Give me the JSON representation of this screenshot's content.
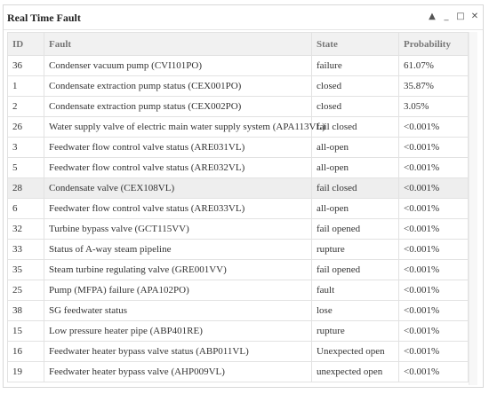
{
  "panel": {
    "title": "Real Time Fault",
    "controls": {
      "collapse": "▲",
      "minimize": "_",
      "maximize": "□",
      "close": "✕"
    }
  },
  "table": {
    "headers": {
      "id": "ID",
      "fault": "Fault",
      "state": "State",
      "probability": "Probability"
    },
    "selected_row": 6,
    "rows": [
      {
        "id": "36",
        "fault": "Condenser vacuum pump (CVI101PO)",
        "state": "failure",
        "probability": "61.07%"
      },
      {
        "id": "1",
        "fault": "Condensate extraction pump status (CEX001PO)",
        "state": "closed",
        "probability": "35.87%"
      },
      {
        "id": "2",
        "fault": "Condensate extraction pump status (CEX002PO)",
        "state": "closed",
        "probability": "3.05%"
      },
      {
        "id": "26",
        "fault": "Water supply valve of electric main water supply system (APA113VL)",
        "state": "fail closed",
        "probability": "<0.001%"
      },
      {
        "id": "3",
        "fault": "Feedwater flow control valve status (ARE031VL)",
        "state": "all-open",
        "probability": "<0.001%"
      },
      {
        "id": "5",
        "fault": "Feedwater flow control valve status (ARE032VL)",
        "state": "all-open",
        "probability": "<0.001%"
      },
      {
        "id": "28",
        "fault": "Condensate valve (CEX108VL)",
        "state": "fail closed",
        "probability": "<0.001%"
      },
      {
        "id": "6",
        "fault": "Feedwater flow control valve status (ARE033VL)",
        "state": "all-open",
        "probability": "<0.001%"
      },
      {
        "id": "32",
        "fault": "Turbine bypass valve (GCT115VV)",
        "state": "fail opened",
        "probability": "<0.001%"
      },
      {
        "id": "33",
        "fault": "Status of A-way steam pipeline",
        "state": "rupture",
        "probability": "<0.001%"
      },
      {
        "id": "35",
        "fault": "Steam turbine regulating valve (GRE001VV)",
        "state": "fail opened",
        "probability": "<0.001%"
      },
      {
        "id": "25",
        "fault": "Pump (MFPA) failure (APA102PO)",
        "state": "fault",
        "probability": "<0.001%"
      },
      {
        "id": "38",
        "fault": "SG feedwater status",
        "state": "lose",
        "probability": "<0.001%"
      },
      {
        "id": "15",
        "fault": "Low pressure heater pipe (ABP401RE)",
        "state": "rupture",
        "probability": "<0.001%"
      },
      {
        "id": "16",
        "fault": "Feedwater heater bypass valve status (ABP011VL)",
        "state": "Unexpected open",
        "probability": "<0.001%"
      },
      {
        "id": "19",
        "fault": "Feedwater heater bypass valve (AHP009VL)",
        "state": "unexpected open",
        "probability": "<0.001%"
      }
    ]
  }
}
